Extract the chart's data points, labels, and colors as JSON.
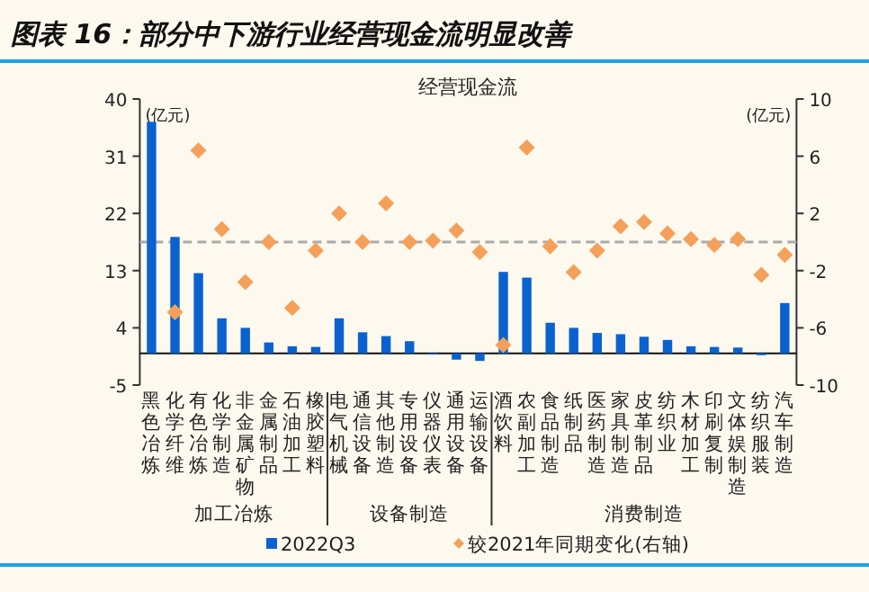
{
  "chart_data": {
    "type": "bar",
    "title": "图表 16：部分中下游行业经营现金流明显改善",
    "subtitle": "经营现金流",
    "ylabel": "(亿元)",
    "y2label": "(亿元)",
    "categories": [
      "黑色冶炼",
      "化学纤维",
      "有色冶炼",
      "化学制造",
      "非金属矿物",
      "金属制品",
      "石油加工",
      "橡胶塑料",
      "电气机械",
      "通信设备",
      "其他制造",
      "专用设备",
      "仪器仪表",
      "通用设备",
      "运输设备",
      "酒饮料",
      "农副加工",
      "食品制造",
      "纸制品",
      "医药制造",
      "家具制造",
      "皮革制品",
      "纺织业",
      "木材加工",
      "印刷复制",
      "文体娱制造",
      "纺织服装",
      "汽车制造"
    ],
    "series": [
      {
        "name": "2022Q3",
        "color": "#0a62d0",
        "values": [
          36.4,
          18.3,
          12.6,
          5.5,
          4.0,
          1.7,
          1.1,
          1.0,
          5.5,
          3.3,
          2.7,
          1.9,
          -0.2,
          -1.0,
          -1.2,
          12.8,
          11.9,
          4.8,
          4.0,
          3.2,
          3.0,
          2.6,
          2.1,
          1.1,
          1.0,
          0.9,
          -0.3,
          7.9
        ]
      },
      {
        "name": "较2021年同期变化(右轴)",
        "type": "scatter",
        "axis": "y2",
        "color": "#f5a05a",
        "marker": "diamond",
        "values": [
          null,
          -4.9,
          6.4,
          0.9,
          -2.8,
          0.0,
          -4.6,
          -0.6,
          2.0,
          0.0,
          2.7,
          0.0,
          0.1,
          0.8,
          -0.7,
          -7.2,
          6.6,
          -0.3,
          -2.1,
          -0.6,
          1.1,
          1.4,
          0.6,
          0.2,
          -0.2,
          0.2,
          -2.3,
          -0.9
        ]
      }
    ],
    "ylim": [
      -5,
      40
    ],
    "yticks": [
      -5,
      4,
      13,
      22,
      31,
      40
    ],
    "y2lim": [
      -10,
      10
    ],
    "y2ticks": [
      -10,
      -6,
      -2,
      2,
      6,
      10
    ],
    "ref_lines": [
      {
        "axis": "y2",
        "value": 0,
        "color": "#aaaaaa",
        "line_style": "dashed"
      }
    ],
    "annotations": [
      "加工冶炼",
      "设备制造",
      "消费制造"
    ],
    "grid": false,
    "legend": "bottom"
  }
}
